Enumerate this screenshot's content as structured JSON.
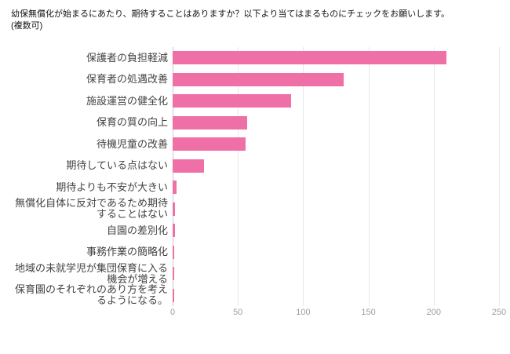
{
  "title": {
    "line1": "幼保無償化が始まるにあたり、期待することはありますか？以下より当てはまるものにチェックをお願いします。",
    "line2": "(複数可)"
  },
  "chart_data": {
    "type": "bar",
    "orientation": "horizontal",
    "title": "幼保無償化が始まるにあたり、期待することはありますか？以下より当てはまるものにチェックをお願いします。(複数可)",
    "categories": [
      "保護者の負担軽減",
      "保育者の処遇改善",
      "施設運営の健全化",
      "保育の質の向上",
      "待機児童の改善",
      "期待している点はない",
      "期待よりも不安が大きい",
      "無償化自体に反対であるため期待することはない",
      "自園の差別化",
      "事務作業の簡略化",
      "地域の未就学児が集団保育に入る機会が増える",
      "保育園のそれぞれのあり方を考えるようになる。"
    ],
    "values": [
      210,
      131,
      91,
      57,
      56,
      24,
      3,
      2,
      2,
      1,
      1,
      1
    ],
    "xlabel": "",
    "ylabel": "",
    "xlim": [
      0,
      250
    ],
    "ticks": [
      0,
      50,
      100,
      150,
      200,
      250
    ],
    "bar_color": "#ef6fa7",
    "grid": true,
    "legend": "none"
  }
}
